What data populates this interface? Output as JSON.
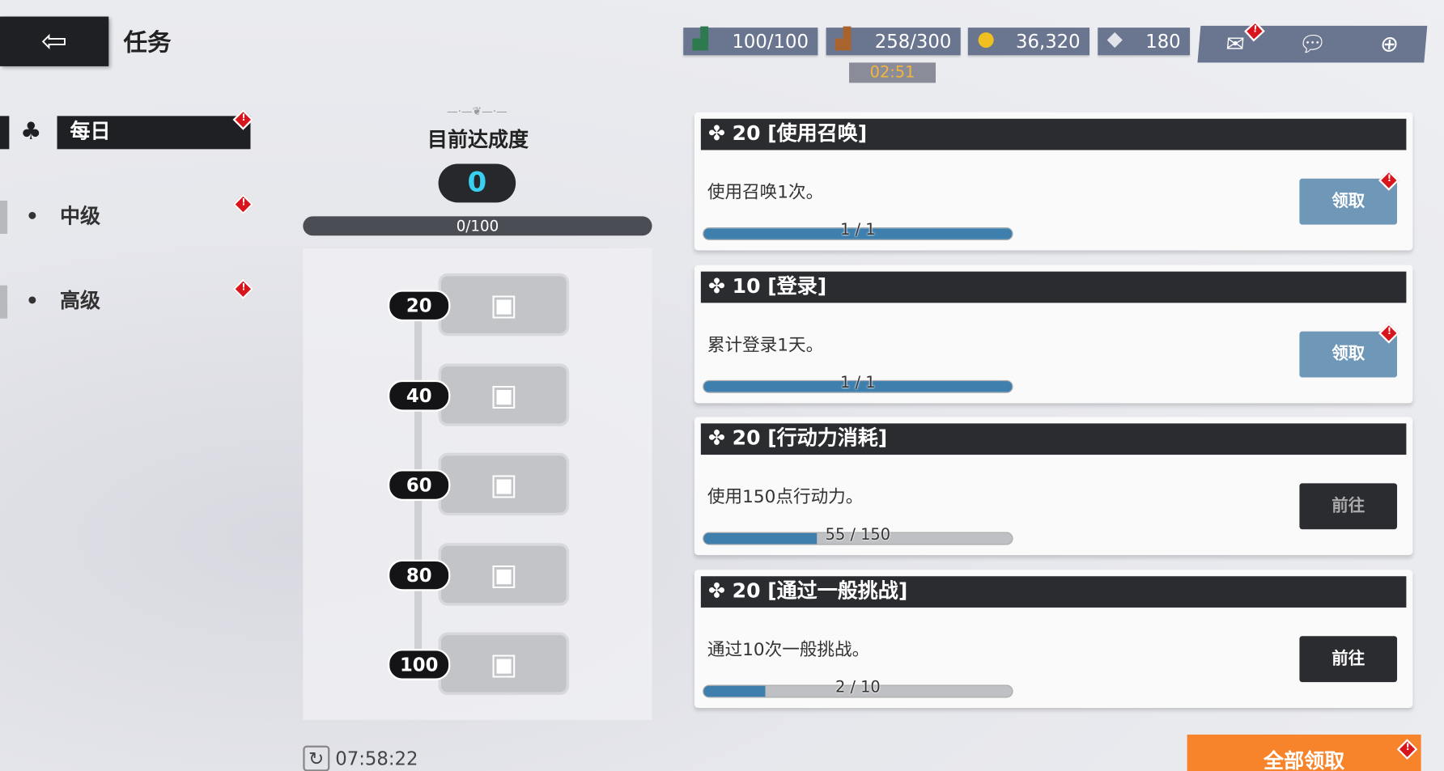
{
  "header": {
    "title": "任务",
    "back_icon": "back-arrow-icon"
  },
  "resources": [
    {
      "icon": "green-boot-icon",
      "value": "100/100"
    },
    {
      "icon": "brown-boot-icon",
      "value": "258/300"
    },
    {
      "icon": "gold-coin-icon",
      "value": "36,320"
    },
    {
      "icon": "crystal-icon",
      "value": "180"
    }
  ],
  "stamina_timer": "02:51",
  "sidebar": {
    "items": [
      {
        "label": "每日",
        "active": true
      },
      {
        "label": "中级"
      },
      {
        "label": "高级"
      }
    ]
  },
  "progress": {
    "title": "目前达成度",
    "score": "0",
    "bar_text": "0/100",
    "value": 0,
    "max": 100,
    "tiers": [
      "20",
      "40",
      "60",
      "80",
      "100"
    ]
  },
  "missions": [
    {
      "title": "✤ 20 [使用召唤]",
      "desc": "使用召唤1次。",
      "progress": "1 / 1",
      "fraction": 1,
      "button": "领取",
      "type": "claim"
    },
    {
      "title": "✤ 10 [登录]",
      "desc": "累计登录1天。",
      "progress": "1 / 1",
      "fraction": 1,
      "button": "领取",
      "type": "claim"
    },
    {
      "title": "✤ 20 [行动力消耗]",
      "desc": "使用150点行动力。",
      "progress": "55 / 150",
      "fraction": 0.367,
      "button": "前往",
      "type": "go-dim"
    },
    {
      "title": "✤ 20 [通过一般挑战]",
      "desc": "通过10次一般挑战。",
      "progress": "2 / 10",
      "fraction": 0.2,
      "button": "前往",
      "type": "go"
    }
  ],
  "footer": {
    "refresh_time": "07:58:22",
    "claim_all": "全部领取"
  },
  "colors": {
    "accent_orange": "#f7842a",
    "progress_blue": "#3f7fae",
    "alert_red": "#d8141c",
    "score_cyan": "#38d0f0"
  }
}
